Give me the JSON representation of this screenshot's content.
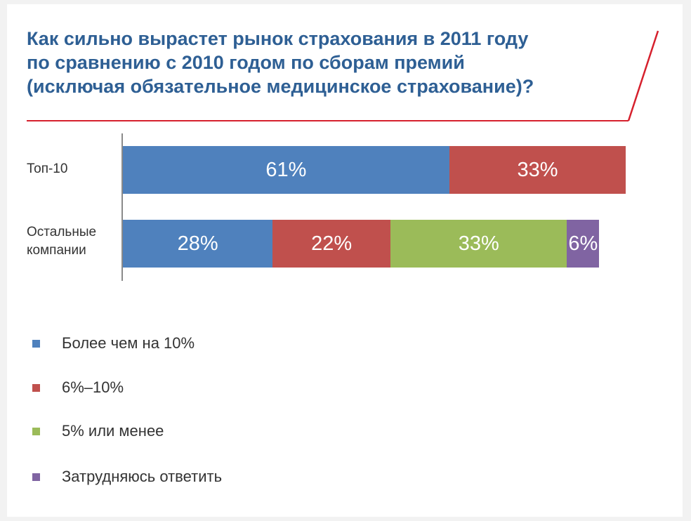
{
  "colors": {
    "blue": "#4f81bd",
    "red": "#c0504d",
    "green": "#9bbb59",
    "purple": "#8064a2",
    "title": "#2e5f94",
    "accent_line": "#d6202d"
  },
  "chart_data": {
    "type": "bar",
    "orientation": "horizontal",
    "stacked": true,
    "title_lines": [
      "Как сильно вырастет рынок страхования в 2011 году",
      "по сравнению с 2010 годом по сборам премий",
      "(исключая обязательное медицинское страхование)?"
    ],
    "categories": [
      [
        "Топ-10"
      ],
      [
        "Остальные",
        "компании"
      ]
    ],
    "series": [
      {
        "name": "Более чем на 10%",
        "color": "#4f81bd",
        "values": [
          61,
          28
        ],
        "labels": [
          "61%",
          "28%"
        ]
      },
      {
        "name": "6%–10%",
        "color": "#c0504d",
        "values": [
          33,
          22
        ],
        "labels": [
          "33%",
          "22%"
        ]
      },
      {
        "name": "5% или менее",
        "color": "#9bbb59",
        "values": [
          0,
          33
        ],
        "labels": [
          "",
          "33%"
        ]
      },
      {
        "name": "Затрудняюсь ответить",
        "color": "#8064a2",
        "values": [
          0,
          6
        ],
        "labels": [
          "",
          "6%"
        ]
      }
    ],
    "xlim": [
      0,
      100
    ],
    "legend_position": "bottom-left",
    "grid": false
  }
}
